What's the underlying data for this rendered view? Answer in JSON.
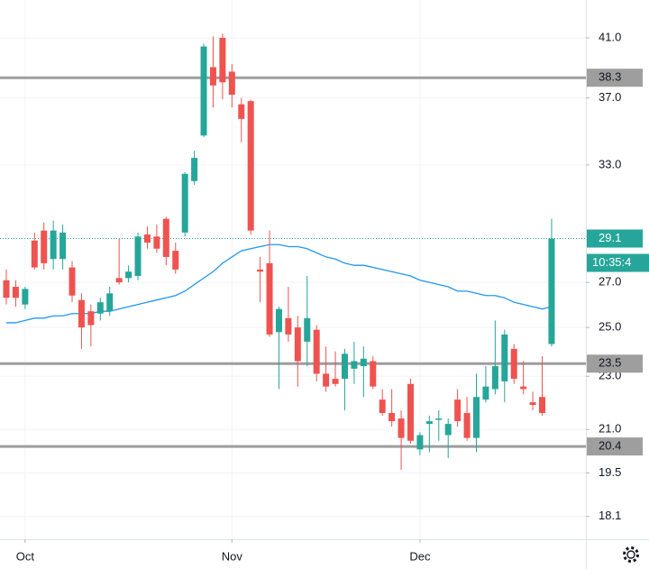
{
  "chart_data": {
    "type": "candlestick",
    "categories": [
      null,
      null,
      "Oct",
      null,
      null,
      null,
      null,
      null,
      null,
      null,
      null,
      null,
      null,
      null,
      null,
      null,
      null,
      null,
      null,
      null,
      null,
      null,
      null,
      null,
      "Nov",
      null,
      null,
      null,
      null,
      null,
      null,
      null,
      null,
      null,
      null,
      null,
      null,
      null,
      null,
      null,
      null,
      null,
      null,
      null,
      "Dec",
      null,
      null,
      null,
      null,
      null,
      null,
      null,
      null,
      null,
      null,
      null,
      null,
      null,
      null
    ],
    "ohlc": {
      "open": [
        27.1,
        26.8,
        26.0,
        29.0,
        29.5,
        28.1,
        28.1,
        27.7,
        26.2,
        25.7,
        25.6,
        25.7,
        27.2,
        27.2,
        27.3,
        29.3,
        29.2,
        30.1,
        28.5,
        29.4,
        32.1,
        34.7,
        39.0,
        41.0,
        38.7,
        36.6,
        36.8,
        27.6,
        27.9,
        24.8,
        25.4,
        25.0,
        24.4,
        24.9,
        23.1,
        22.9,
        22.9,
        23.3,
        23.4,
        23.6,
        22.1,
        21.6,
        21.4,
        22.7,
        20.3,
        21.2,
        21.35,
        20.8,
        22.1,
        21.6,
        20.7,
        22.1,
        22.5,
        22.8,
        24.1,
        22.6,
        22.0,
        22.2,
        24.3
      ],
      "high": [
        27.6,
        27.1,
        26.8,
        29.4,
        29.9,
        30.0,
        29.8,
        28.0,
        26.5,
        26.0,
        26.3,
        26.8,
        29.1,
        27.8,
        29.4,
        29.7,
        29.8,
        30.2,
        28.9,
        32.6,
        33.8,
        40.6,
        41.1,
        41.3,
        39.2,
        37.0,
        36.9,
        28.2,
        29.5,
        25.9,
        26.8,
        25.5,
        27.3,
        25.1,
        24.2,
        24.0,
        24.1,
        24.4,
        24.2,
        23.8,
        22.5,
        22.5,
        21.7,
        22.9,
        20.9,
        21.5,
        21.7,
        21.4,
        22.5,
        22.2,
        23.1,
        23.4,
        25.3,
        24.9,
        24.3,
        23.6,
        22.4,
        23.8,
        30.1
      ],
      "low": [
        26.0,
        25.9,
        25.8,
        27.6,
        27.6,
        27.6,
        27.6,
        26.1,
        24.1,
        24.2,
        25.3,
        25.5,
        26.9,
        27.0,
        27.1,
        28.6,
        28.4,
        27.8,
        27.4,
        29.2,
        31.9,
        34.6,
        36.4,
        36.9,
        36.4,
        34.3,
        29.3,
        26.1,
        24.6,
        22.5,
        24.4,
        22.6,
        23.4,
        22.8,
        22.4,
        22.6,
        21.7,
        22.7,
        22.2,
        22.5,
        21.5,
        21.1,
        19.6,
        20.5,
        20.1,
        20.2,
        20.6,
        20.0,
        21.1,
        20.6,
        20.2,
        22.0,
        22.3,
        22.0,
        22.7,
        22.3,
        21.7,
        21.5,
        24.2
      ],
      "close": [
        26.3,
        26.3,
        26.7,
        27.7,
        27.9,
        29.5,
        29.4,
        26.4,
        25.0,
        25.1,
        26.1,
        26.5,
        27.0,
        27.5,
        29.2,
        28.9,
        28.6,
        28.2,
        27.6,
        32.5,
        33.4,
        40.4,
        37.8,
        38.0,
        37.2,
        35.7,
        29.5,
        27.5,
        24.7,
        25.8,
        24.7,
        23.6,
        25.4,
        23.1,
        22.6,
        22.7,
        23.9,
        23.6,
        23.7,
        22.6,
        21.6,
        21.3,
        20.7,
        20.6,
        20.8,
        21.3,
        21.4,
        21.2,
        21.3,
        20.7,
        22.2,
        22.6,
        23.4,
        24.7,
        22.9,
        22.5,
        21.9,
        21.6,
        29.1
      ],
      "up_color": "#26a69a",
      "down_color": "#ef5350"
    },
    "moving_average": {
      "color": "#2196f3",
      "values": [
        25.2,
        25.2,
        25.3,
        25.4,
        25.4,
        25.5,
        25.5,
        25.6,
        25.6,
        25.6,
        25.7,
        25.7,
        25.8,
        25.9,
        26.0,
        26.1,
        26.2,
        26.3,
        26.4,
        26.6,
        26.9,
        27.2,
        27.5,
        27.9,
        28.2,
        28.5,
        28.6,
        28.7,
        28.8,
        28.8,
        28.7,
        28.7,
        28.6,
        28.4,
        28.2,
        28.1,
        27.9,
        27.8,
        27.8,
        27.7,
        27.6,
        27.5,
        27.4,
        27.3,
        27.1,
        27.0,
        26.9,
        26.8,
        26.6,
        26.6,
        26.5,
        26.4,
        26.4,
        26.3,
        26.1,
        26.0,
        25.9,
        25.8,
        25.9
      ]
    },
    "levels": [
      38.3,
      23.5,
      20.4
    ],
    "level_color": "#9e9e9e",
    "last_price": 29.1,
    "countdown": "10:35:4",
    "ylim": [
      17.41,
      43.74
    ],
    "log_scale": true,
    "yticks": [
      {
        "value": 41,
        "label": "41.0"
      },
      {
        "value": 37,
        "label": "37.0"
      },
      {
        "value": 33,
        "label": "33.0"
      },
      {
        "value": 27,
        "label": "27.0"
      },
      {
        "value": 25,
        "label": "25.0"
      },
      {
        "value": 23,
        "label": "23.0"
      },
      {
        "value": 21,
        "label": "21.0"
      },
      19.5,
      18.1
    ],
    "grid": true
  }
}
